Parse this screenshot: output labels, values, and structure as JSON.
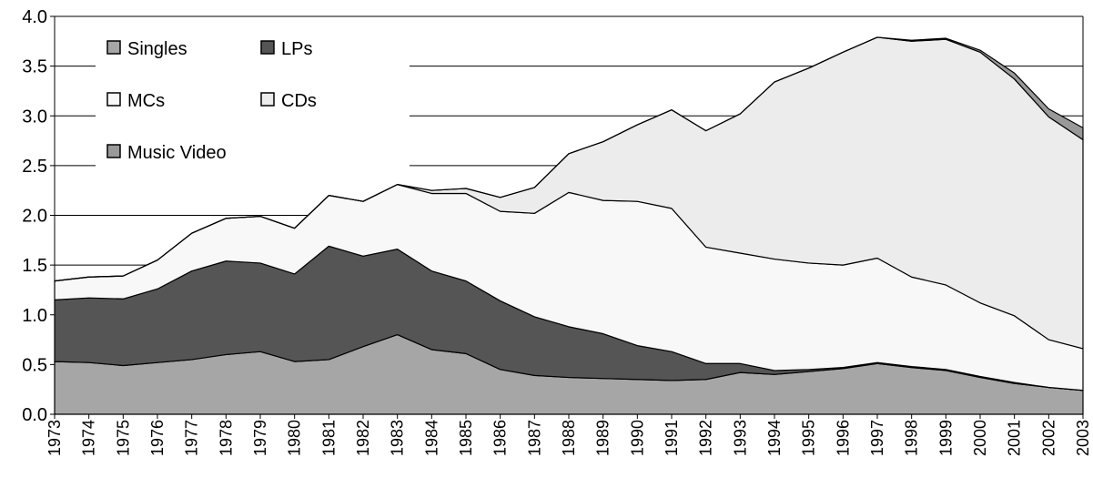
{
  "chart_data": {
    "type": "stacked-area",
    "categories": [
      "1973",
      "1974",
      "1975",
      "1976",
      "1977",
      "1978",
      "1979",
      "1980",
      "1981",
      "1982",
      "1983",
      "1984",
      "1985",
      "1986",
      "1987",
      "1988",
      "1989",
      "1990",
      "1991",
      "1992",
      "1993",
      "1994",
      "1995",
      "1996",
      "1997",
      "1998",
      "1999",
      "2000",
      "2001",
      "2002",
      "2003"
    ],
    "series": [
      {
        "name": "Singles",
        "color": "#a6a6a6",
        "values": [
          0.53,
          0.52,
          0.49,
          0.52,
          0.55,
          0.6,
          0.63,
          0.53,
          0.55,
          0.68,
          0.8,
          0.65,
          0.61,
          0.45,
          0.39,
          0.37,
          0.36,
          0.35,
          0.34,
          0.35,
          0.42,
          0.4,
          0.43,
          0.46,
          0.51,
          0.47,
          0.44,
          0.37,
          0.31,
          0.27,
          0.24
        ]
      },
      {
        "name": "LPs",
        "color": "#555555",
        "values": [
          0.62,
          0.65,
          0.67,
          0.74,
          0.89,
          0.94,
          0.89,
          0.88,
          1.14,
          0.91,
          0.86,
          0.79,
          0.73,
          0.69,
          0.59,
          0.51,
          0.45,
          0.34,
          0.29,
          0.16,
          0.09,
          0.04,
          0.02,
          0.01,
          0.01,
          0.01,
          0.01,
          0.01,
          0.01,
          0,
          0
        ]
      },
      {
        "name": "MCs",
        "color": "#f8f8f8",
        "values": [
          0.19,
          0.21,
          0.23,
          0.29,
          0.38,
          0.43,
          0.47,
          0.46,
          0.51,
          0.55,
          0.65,
          0.78,
          0.88,
          0.9,
          1.04,
          1.35,
          1.34,
          1.45,
          1.44,
          1.17,
          1.11,
          1.12,
          1.07,
          1.03,
          1.05,
          0.9,
          0.85,
          0.74,
          0.67,
          0.48,
          0.42
        ]
      },
      {
        "name": "CDs",
        "color": "#ececec",
        "values": [
          0,
          0,
          0,
          0,
          0,
          0,
          0,
          0,
          0,
          0,
          0,
          0.03,
          0.05,
          0.14,
          0.26,
          0.39,
          0.59,
          0.77,
          0.99,
          1.17,
          1.4,
          1.78,
          1.96,
          2.14,
          2.22,
          2.37,
          2.47,
          2.52,
          2.38,
          2.24,
          2.1
        ]
      },
      {
        "name": "Music Video",
        "color": "#999999",
        "values": [
          0,
          0,
          0,
          0,
          0,
          0,
          0,
          0,
          0,
          0,
          0,
          0,
          0,
          0,
          0,
          0,
          0,
          0,
          0,
          0,
          0,
          0,
          0,
          0,
          0,
          0.01,
          0.01,
          0.02,
          0.06,
          0.08,
          0.12
        ]
      }
    ],
    "ylim": [
      0,
      4
    ],
    "yticks": [
      {
        "value": 0,
        "label": "0.0"
      },
      {
        "value": 0.5,
        "label": "0.5"
      },
      {
        "value": 1,
        "label": "1.0"
      },
      {
        "value": 1.5,
        "label": "1.5"
      },
      {
        "value": 2,
        "label": "2.0"
      },
      {
        "value": 2.5,
        "label": "2.5"
      },
      {
        "value": 3,
        "label": "3.0"
      },
      {
        "value": 3.5,
        "label": "3.5"
      },
      {
        "value": 4,
        "label": "4.0"
      }
    ],
    "grid": true,
    "legend": "top-left"
  }
}
